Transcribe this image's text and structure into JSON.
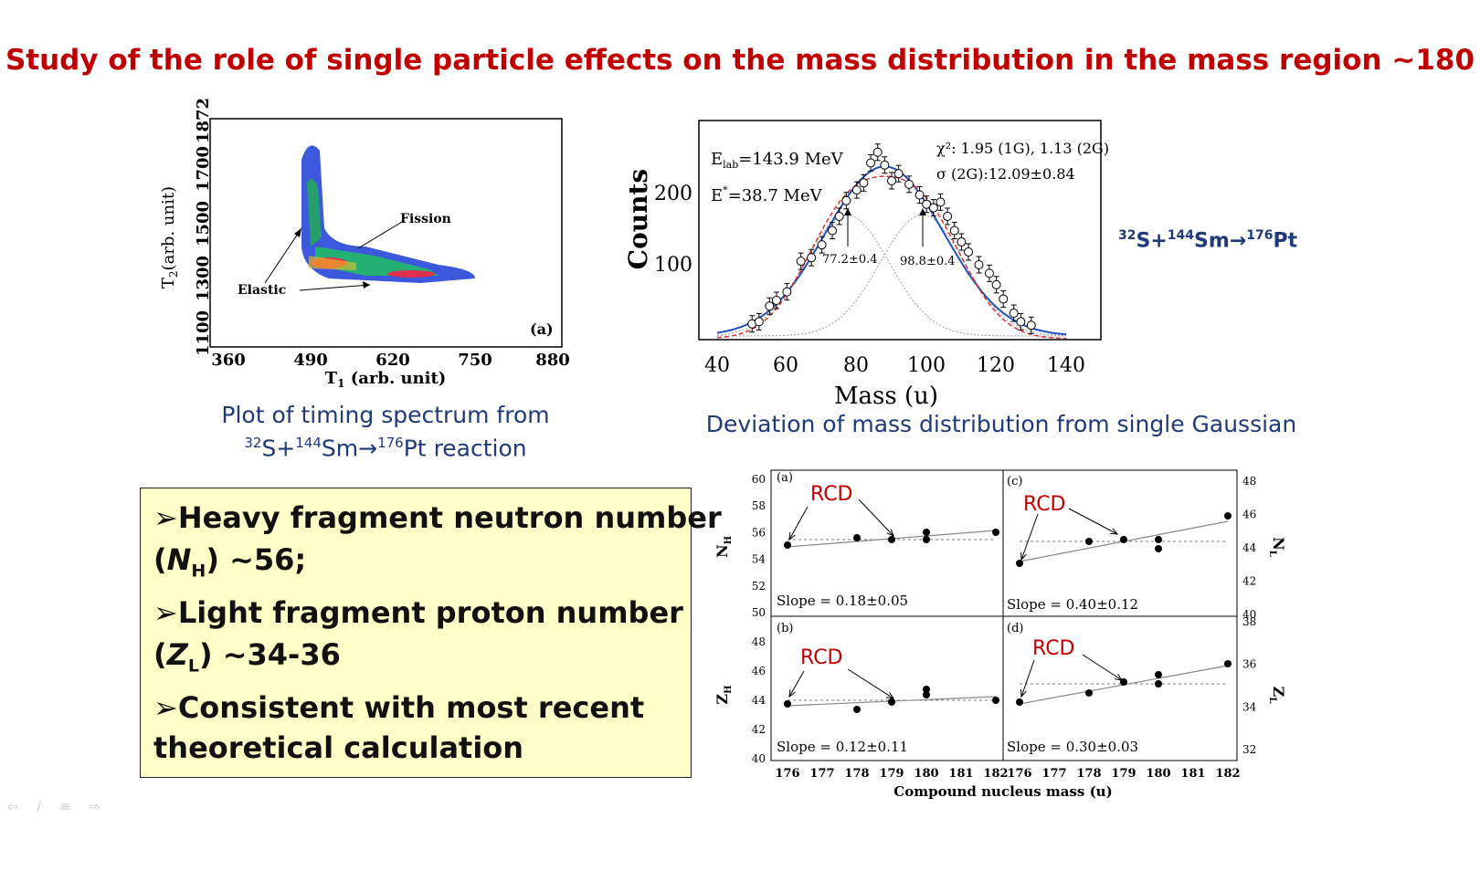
{
  "title": "Study of the role of single particle effects on the mass distribution in the mass region ~180",
  "reaction": {
    "s_mass": "32",
    "s": "S+",
    "sm_mass": "144",
    "sm": "Sm",
    "arrow": "→",
    "pt_mass": "176",
    "pt": "Pt",
    "suffix": " reaction"
  },
  "caption_timing_line1": "Plot of timing spectrum from",
  "caption_mass": "Deviation of mass distribution from single Gaussian",
  "timing_plot": {
    "xlabel_main": "T",
    "xlabel_sub": "1",
    "xlabel_rest": " (arb. unit)",
    "ylabel_main": "T",
    "ylabel_sub": "2",
    "ylabel_rest": "(arb. unit)",
    "xticks": [
      "360",
      "490",
      "620",
      "750",
      "880"
    ],
    "yticks": [
      "1100",
      "1300",
      "1500",
      "1700",
      "1872"
    ],
    "panel_label": "(a)",
    "fission_label": "Fission",
    "elastic_label": "Elastic"
  },
  "mass_plot": {
    "xlabel": "Mass (u)",
    "ylabel": "Counts",
    "xticks": [
      "40",
      "60",
      "80",
      "100",
      "120",
      "140"
    ],
    "yticks": [
      "100",
      "200"
    ],
    "elab_main": "E",
    "elab_sub": "lab",
    "elab_rest": "=143.9 MeV",
    "estar_main": "E",
    "estar_sup": "*",
    "estar_rest": "=38.7 MeV",
    "chi_text": "χ²: 1.95 (1G), 1.13 (2G)",
    "sigma_text": "σ (2G):12.09±0.84",
    "peak1_label": "77.2±0.4",
    "peak2_label": "98.8±0.4",
    "points": [
      [
        50,
        17
      ],
      [
        52,
        20
      ],
      [
        55,
        42
      ],
      [
        57,
        50
      ],
      [
        60,
        62
      ],
      [
        64,
        105
      ],
      [
        67,
        110
      ],
      [
        70,
        128
      ],
      [
        73,
        148
      ],
      [
        75,
        168
      ],
      [
        77,
        190
      ],
      [
        80,
        205
      ],
      [
        82,
        215
      ],
      [
        84,
        243
      ],
      [
        86,
        258
      ],
      [
        88,
        240
      ],
      [
        90,
        218
      ],
      [
        92,
        228
      ],
      [
        95,
        213
      ],
      [
        98,
        198
      ],
      [
        100,
        185
      ],
      [
        102,
        180
      ],
      [
        104,
        188
      ],
      [
        106,
        168
      ],
      [
        108,
        148
      ],
      [
        110,
        132
      ],
      [
        112,
        118
      ],
      [
        115,
        100
      ],
      [
        118,
        88
      ],
      [
        120,
        72
      ],
      [
        122,
        52
      ],
      [
        125,
        32
      ],
      [
        127,
        20
      ],
      [
        130,
        15
      ]
    ]
  },
  "slope_plots": {
    "xlabel": "Compound nucleus mass (u)",
    "xticks": [
      "176",
      "177",
      "178",
      "179",
      "180",
      "181",
      "182"
    ],
    "rcd": "RCD",
    "panels": [
      {
        "label": "(a)",
        "slope": "Slope = 0.18±0.05",
        "ylab": "N",
        "ysub": "H",
        "yticks": [
          "50",
          "52",
          "54",
          "56",
          "58",
          "60"
        ]
      },
      {
        "label": "(c)",
        "slope": "Slope = 0.40±0.12",
        "ylab": "N",
        "ysub": "L",
        "yticks": [
          "40",
          "42",
          "44",
          "46",
          "48"
        ]
      },
      {
        "label": "(b)",
        "slope": "Slope = 0.12±0.11",
        "ylab": "Z",
        "ysub": "H",
        "yticks": [
          "40",
          "42",
          "44",
          "46",
          "48"
        ]
      },
      {
        "label": "(d)",
        "slope": "Slope = 0.30±0.03",
        "ylab": "Z",
        "ysub": "L",
        "yticks": [
          "32",
          "34",
          "36",
          "38"
        ]
      }
    ]
  },
  "summary": {
    "b1_line1": "Heavy fragment neutron number",
    "b1_line2_pre": "(",
    "b1_line2_var": "N",
    "b1_line2_sub": "H",
    "b1_line2_post": ") ~56;",
    "b2_line1": "Light fragment proton number",
    "b2_line2_pre": "(",
    "b2_line2_var": "Z",
    "b2_line2_sub": "L",
    "b2_line2_post": ") ~34-36",
    "b3_line1": "Consistent with most recent",
    "b3_line2": "theoretical calculation",
    "bullet_glyph": "➢"
  }
}
